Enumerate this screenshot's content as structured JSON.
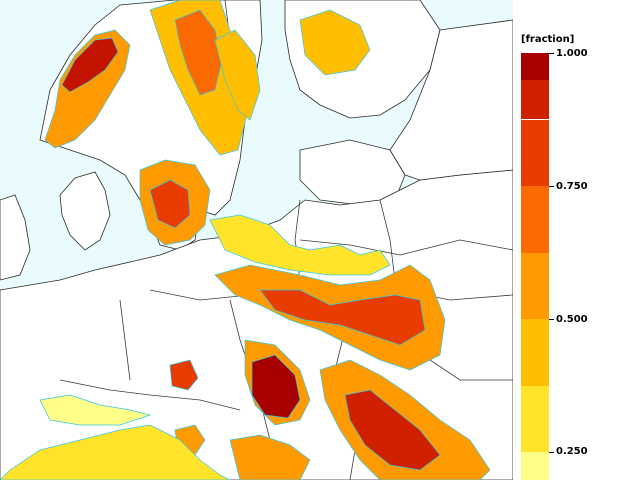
{
  "map": {
    "colors": {
      "water": "#e9fbfd",
      "land": "#ffffff",
      "coast": "#2a2a2a",
      "border": "#3a3a3a",
      "contour": "#33c8e6"
    }
  },
  "legend": {
    "unit_label": "[fraction]",
    "ticks": [
      {
        "value": 1.0,
        "label": "1.000"
      },
      {
        "value": 0.75,
        "label": "0.750"
      },
      {
        "value": 0.5,
        "label": "0.500"
      },
      {
        "value": 0.25,
        "label": "0.250"
      }
    ],
    "bands": [
      {
        "from": 0.95,
        "to": 1.0,
        "color": "#a80000"
      },
      {
        "from": 0.875,
        "to": 0.95,
        "color": "#d02000"
      },
      {
        "from": 0.75,
        "to": 0.875,
        "color": "#e83c00"
      },
      {
        "from": 0.625,
        "to": 0.75,
        "color": "#fb6a00"
      },
      {
        "from": 0.5,
        "to": 0.625,
        "color": "#ff9b00"
      },
      {
        "from": 0.375,
        "to": 0.5,
        "color": "#ffbe00"
      },
      {
        "from": 0.25,
        "to": 0.375,
        "color": "#ffe42a"
      },
      {
        "from": 0.1,
        "to": 0.25,
        "color": "#ffff88"
      }
    ]
  }
}
